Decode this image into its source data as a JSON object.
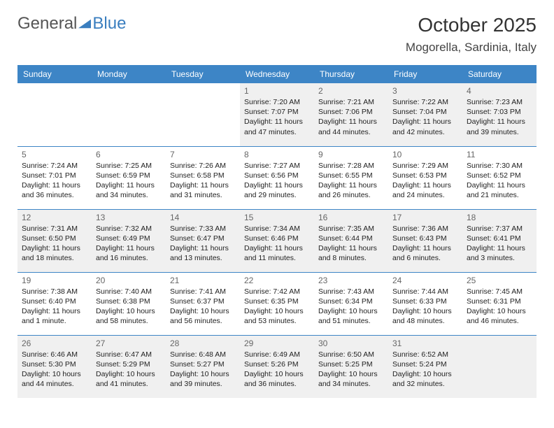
{
  "brand": {
    "part1": "General",
    "part2": "Blue"
  },
  "title": "October 2025",
  "location": "Mogorella, Sardinia, Italy",
  "colors": {
    "header_bg": "#3d85c6",
    "shaded_bg": "#f0f0f0",
    "text": "#222222"
  },
  "day_headers": [
    "Sunday",
    "Monday",
    "Tuesday",
    "Wednesday",
    "Thursday",
    "Friday",
    "Saturday"
  ],
  "weeks": [
    [
      {
        "n": "",
        "sr": "",
        "ss": "",
        "dl": "",
        "shaded": false
      },
      {
        "n": "",
        "sr": "",
        "ss": "",
        "dl": "",
        "shaded": false
      },
      {
        "n": "",
        "sr": "",
        "ss": "",
        "dl": "",
        "shaded": false
      },
      {
        "n": "1",
        "sr": "7:20 AM",
        "ss": "7:07 PM",
        "dl": "11 hours and 47 minutes.",
        "shaded": true
      },
      {
        "n": "2",
        "sr": "7:21 AM",
        "ss": "7:06 PM",
        "dl": "11 hours and 44 minutes.",
        "shaded": true
      },
      {
        "n": "3",
        "sr": "7:22 AM",
        "ss": "7:04 PM",
        "dl": "11 hours and 42 minutes.",
        "shaded": true
      },
      {
        "n": "4",
        "sr": "7:23 AM",
        "ss": "7:03 PM",
        "dl": "11 hours and 39 minutes.",
        "shaded": true
      }
    ],
    [
      {
        "n": "5",
        "sr": "7:24 AM",
        "ss": "7:01 PM",
        "dl": "11 hours and 36 minutes.",
        "shaded": false
      },
      {
        "n": "6",
        "sr": "7:25 AM",
        "ss": "6:59 PM",
        "dl": "11 hours and 34 minutes.",
        "shaded": false
      },
      {
        "n": "7",
        "sr": "7:26 AM",
        "ss": "6:58 PM",
        "dl": "11 hours and 31 minutes.",
        "shaded": false
      },
      {
        "n": "8",
        "sr": "7:27 AM",
        "ss": "6:56 PM",
        "dl": "11 hours and 29 minutes.",
        "shaded": false
      },
      {
        "n": "9",
        "sr": "7:28 AM",
        "ss": "6:55 PM",
        "dl": "11 hours and 26 minutes.",
        "shaded": false
      },
      {
        "n": "10",
        "sr": "7:29 AM",
        "ss": "6:53 PM",
        "dl": "11 hours and 24 minutes.",
        "shaded": false
      },
      {
        "n": "11",
        "sr": "7:30 AM",
        "ss": "6:52 PM",
        "dl": "11 hours and 21 minutes.",
        "shaded": false
      }
    ],
    [
      {
        "n": "12",
        "sr": "7:31 AM",
        "ss": "6:50 PM",
        "dl": "11 hours and 18 minutes.",
        "shaded": true
      },
      {
        "n": "13",
        "sr": "7:32 AM",
        "ss": "6:49 PM",
        "dl": "11 hours and 16 minutes.",
        "shaded": true
      },
      {
        "n": "14",
        "sr": "7:33 AM",
        "ss": "6:47 PM",
        "dl": "11 hours and 13 minutes.",
        "shaded": true
      },
      {
        "n": "15",
        "sr": "7:34 AM",
        "ss": "6:46 PM",
        "dl": "11 hours and 11 minutes.",
        "shaded": true
      },
      {
        "n": "16",
        "sr": "7:35 AM",
        "ss": "6:44 PM",
        "dl": "11 hours and 8 minutes.",
        "shaded": true
      },
      {
        "n": "17",
        "sr": "7:36 AM",
        "ss": "6:43 PM",
        "dl": "11 hours and 6 minutes.",
        "shaded": true
      },
      {
        "n": "18",
        "sr": "7:37 AM",
        "ss": "6:41 PM",
        "dl": "11 hours and 3 minutes.",
        "shaded": true
      }
    ],
    [
      {
        "n": "19",
        "sr": "7:38 AM",
        "ss": "6:40 PM",
        "dl": "11 hours and 1 minute.",
        "shaded": false
      },
      {
        "n": "20",
        "sr": "7:40 AM",
        "ss": "6:38 PM",
        "dl": "10 hours and 58 minutes.",
        "shaded": false
      },
      {
        "n": "21",
        "sr": "7:41 AM",
        "ss": "6:37 PM",
        "dl": "10 hours and 56 minutes.",
        "shaded": false
      },
      {
        "n": "22",
        "sr": "7:42 AM",
        "ss": "6:35 PM",
        "dl": "10 hours and 53 minutes.",
        "shaded": false
      },
      {
        "n": "23",
        "sr": "7:43 AM",
        "ss": "6:34 PM",
        "dl": "10 hours and 51 minutes.",
        "shaded": false
      },
      {
        "n": "24",
        "sr": "7:44 AM",
        "ss": "6:33 PM",
        "dl": "10 hours and 48 minutes.",
        "shaded": false
      },
      {
        "n": "25",
        "sr": "7:45 AM",
        "ss": "6:31 PM",
        "dl": "10 hours and 46 minutes.",
        "shaded": false
      }
    ],
    [
      {
        "n": "26",
        "sr": "6:46 AM",
        "ss": "5:30 PM",
        "dl": "10 hours and 44 minutes.",
        "shaded": true
      },
      {
        "n": "27",
        "sr": "6:47 AM",
        "ss": "5:29 PM",
        "dl": "10 hours and 41 minutes.",
        "shaded": true
      },
      {
        "n": "28",
        "sr": "6:48 AM",
        "ss": "5:27 PM",
        "dl": "10 hours and 39 minutes.",
        "shaded": true
      },
      {
        "n": "29",
        "sr": "6:49 AM",
        "ss": "5:26 PM",
        "dl": "10 hours and 36 minutes.",
        "shaded": true
      },
      {
        "n": "30",
        "sr": "6:50 AM",
        "ss": "5:25 PM",
        "dl": "10 hours and 34 minutes.",
        "shaded": true
      },
      {
        "n": "31",
        "sr": "6:52 AM",
        "ss": "5:24 PM",
        "dl": "10 hours and 32 minutes.",
        "shaded": true
      },
      {
        "n": "",
        "sr": "",
        "ss": "",
        "dl": "",
        "shaded": true
      }
    ]
  ],
  "labels": {
    "sunrise": "Sunrise:",
    "sunset": "Sunset:",
    "daylight": "Daylight:"
  }
}
